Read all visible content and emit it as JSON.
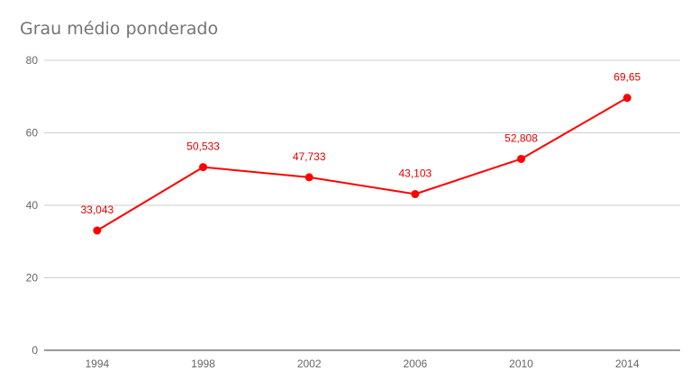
{
  "chart_data": {
    "type": "line",
    "title": "Grau médio ponderado",
    "categories": [
      "1994",
      "1998",
      "2002",
      "2006",
      "2010",
      "2014"
    ],
    "series": [
      {
        "values": [
          33.043,
          50.533,
          47.733,
          43.103,
          52.808,
          69.65
        ],
        "labels": [
          "33,043",
          "50,533",
          "47,733",
          "43,103",
          "52,808",
          "69,65"
        ],
        "color": "#ff0000"
      }
    ],
    "yticks": [
      "0",
      "20",
      "40",
      "60",
      "80"
    ],
    "ylim": [
      0,
      80
    ],
    "grid": true,
    "legend": "none"
  }
}
